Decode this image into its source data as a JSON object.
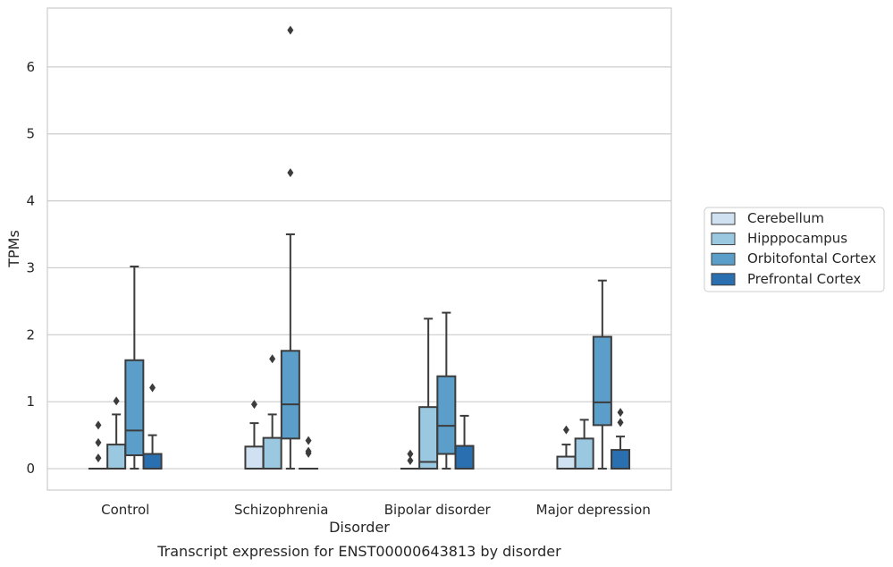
{
  "chart_data": {
    "type": "box",
    "title": "Transcript expression for ENST00000643813 by disorder",
    "xlabel": "Disorder",
    "ylabel": "TPMs",
    "ylim": [
      -0.32,
      6.88
    ],
    "yticks": [
      "0",
      "1",
      "2",
      "3",
      "4",
      "5",
      "6"
    ],
    "ytick_values": [
      0,
      1,
      2,
      3,
      4,
      5,
      6
    ],
    "grid": "horizontal",
    "legend_position": "right",
    "categories": [
      "Control",
      "Schizophrenia",
      "Bipolar disorder",
      "Major depression"
    ],
    "series": [
      {
        "name": "Cerebellum",
        "color": "#d0e1f2",
        "boxes": [
          {
            "whislo": 0,
            "q1": 0,
            "med": 0,
            "q3": 0,
            "whishi": 0,
            "fliers": [
              0.16,
              0.39,
              0.65
            ]
          },
          {
            "whislo": 0,
            "q1": 0,
            "med": 0,
            "q3": 0.33,
            "whishi": 0.68,
            "fliers": [
              0.96
            ]
          },
          {
            "whislo": 0,
            "q1": 0,
            "med": 0,
            "q3": 0,
            "whishi": 0,
            "fliers": [
              0.12,
              0.22
            ]
          },
          {
            "whislo": 0,
            "q1": 0,
            "med": 0,
            "q3": 0.18,
            "whishi": 0.36,
            "fliers": [
              0.58
            ]
          }
        ]
      },
      {
        "name": "Hipppocampus",
        "color": "#9ac8e0",
        "boxes": [
          {
            "whislo": 0,
            "q1": 0,
            "med": 0,
            "q3": 0.36,
            "whishi": 0.81,
            "fliers": [
              1.01
            ]
          },
          {
            "whislo": 0,
            "q1": 0,
            "med": 0,
            "q3": 0.46,
            "whishi": 0.81,
            "fliers": [
              1.64
            ]
          },
          {
            "whislo": 0,
            "q1": 0,
            "med": 0.1,
            "q3": 0.92,
            "whishi": 2.24,
            "fliers": []
          },
          {
            "whislo": 0,
            "q1": 0,
            "med": 0,
            "q3": 0.45,
            "whishi": 0.73,
            "fliers": []
          }
        ]
      },
      {
        "name": "Orbitofontal Cortex",
        "color": "#5a9ec9",
        "boxes": [
          {
            "whislo": 0,
            "q1": 0.2,
            "med": 0.57,
            "q3": 1.62,
            "whishi": 3.02,
            "fliers": []
          },
          {
            "whislo": 0,
            "q1": 0.45,
            "med": 0.96,
            "q3": 1.76,
            "whishi": 3.5,
            "fliers": [
              4.42,
              6.55
            ]
          },
          {
            "whislo": 0,
            "q1": 0.22,
            "med": 0.64,
            "q3": 1.38,
            "whishi": 2.33,
            "fliers": []
          },
          {
            "whislo": 0,
            "q1": 0.65,
            "med": 0.99,
            "q3": 1.97,
            "whishi": 2.81,
            "fliers": []
          }
        ]
      },
      {
        "name": "Prefrontal Cortex",
        "color": "#2a6fb0",
        "boxes": [
          {
            "whislo": 0,
            "q1": 0,
            "med": 0,
            "q3": 0.22,
            "whishi": 0.5,
            "fliers": [
              1.21
            ]
          },
          {
            "whislo": 0,
            "q1": 0,
            "med": 0,
            "q3": 0,
            "whishi": 0,
            "fliers": [
              0.23,
              0.26,
              0.42
            ]
          },
          {
            "whislo": 0,
            "q1": 0,
            "med": 0,
            "q3": 0.34,
            "whishi": 0.79,
            "fliers": []
          },
          {
            "whislo": 0,
            "q1": 0,
            "med": 0,
            "q3": 0.28,
            "whishi": 0.48,
            "fliers": [
              0.69,
              0.84
            ]
          }
        ]
      }
    ]
  }
}
